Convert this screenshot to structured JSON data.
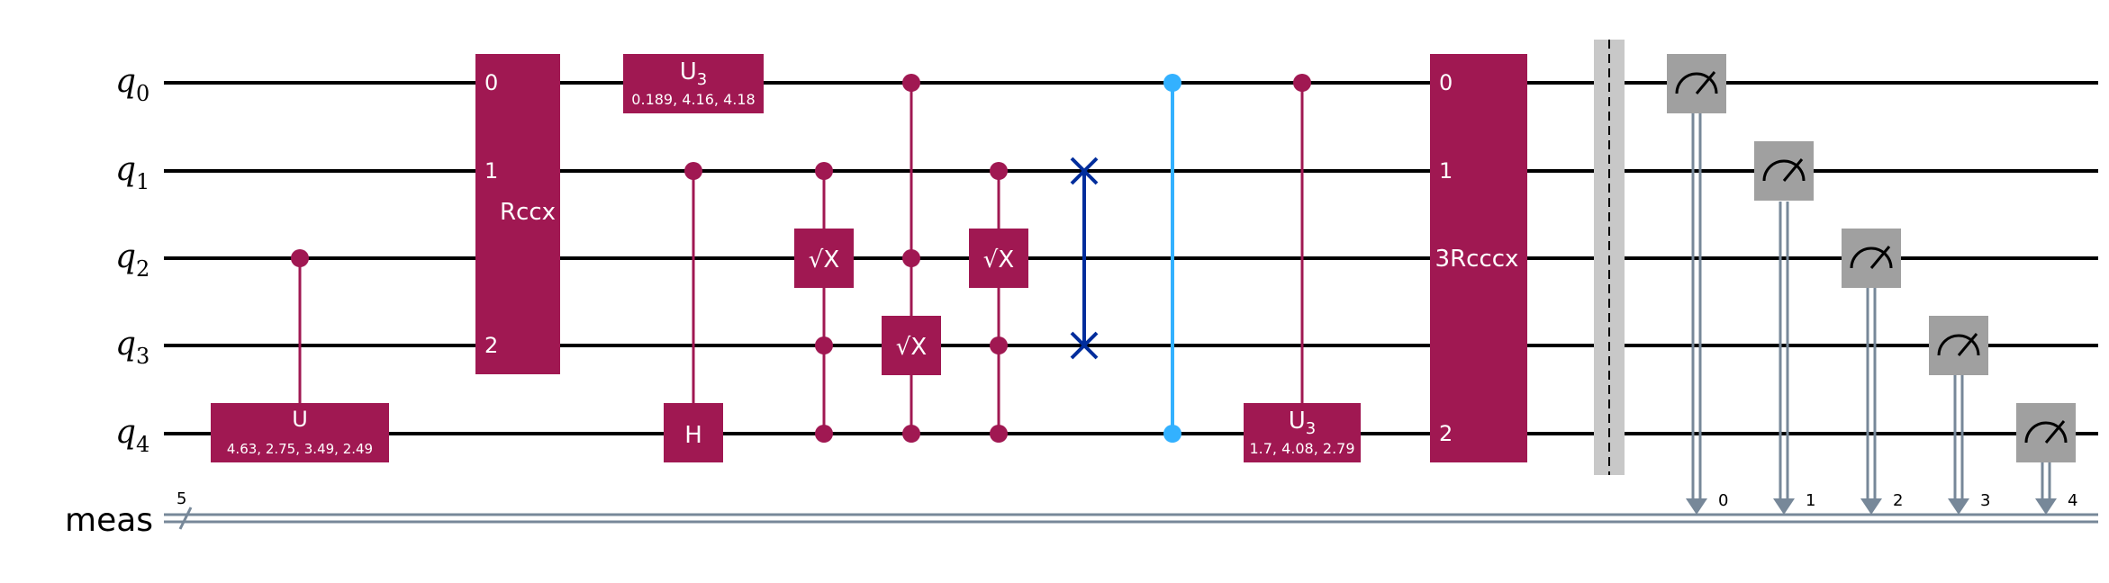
{
  "colors": {
    "gate": "#a01852",
    "wire": "#000000",
    "classical": "#778899",
    "measure": "#a0a0a0",
    "cz": "#33b1ff",
    "swap": "#002d9c",
    "barrier": "#c8c8c8",
    "text_light": "#ffffff"
  },
  "qubits": [
    {
      "name": "q",
      "index": "0"
    },
    {
      "name": "q",
      "index": "1"
    },
    {
      "name": "q",
      "index": "2"
    },
    {
      "name": "q",
      "index": "3"
    },
    {
      "name": "q",
      "index": "4"
    }
  ],
  "classical_register": {
    "name": "meas",
    "size": "5"
  },
  "gates": {
    "u": {
      "label": "U",
      "params": "4.63, 2.75, 3.49, 2.49"
    },
    "rccx": {
      "label": "Rccx",
      "ports": [
        "0",
        "1",
        "2"
      ]
    },
    "u3_top": {
      "label": "U",
      "sub": "3",
      "params": "0.189, 4.16, 4.18"
    },
    "h": {
      "label": "H"
    },
    "sx1": {
      "label": "X",
      "prefix": "√"
    },
    "sx2": {
      "label": "X",
      "prefix": "√"
    },
    "sx3": {
      "label": "X",
      "prefix": "√"
    },
    "u3_bottom": {
      "label": "U",
      "sub": "3",
      "params": "1.7, 4.08, 2.79"
    },
    "rcccx": {
      "label": "3Rcccx",
      "ports": [
        "0",
        "1",
        "2"
      ]
    }
  },
  "measure_bits": [
    "0",
    "1",
    "2",
    "3",
    "4"
  ]
}
